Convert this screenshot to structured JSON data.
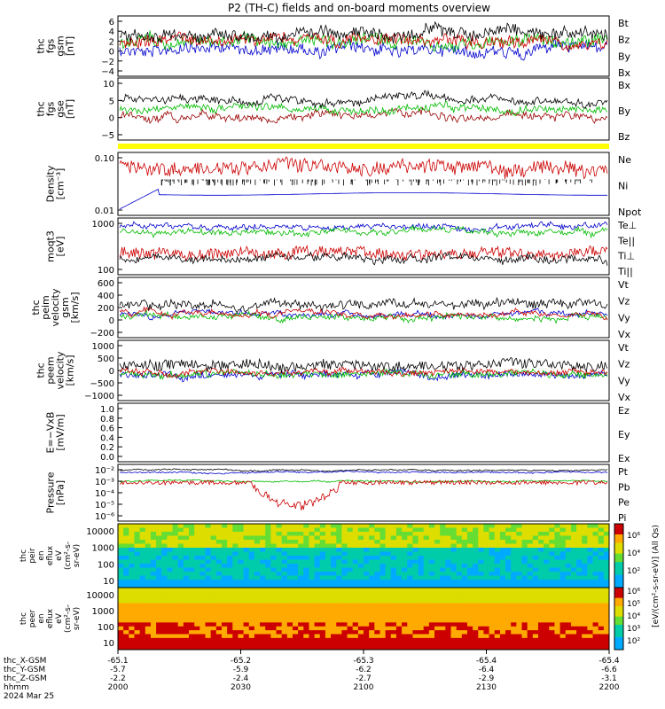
{
  "title": "P2 (TH-C) fields and on-board moments overview",
  "date_label": "2024 Mar 25",
  "ephem": {
    "rows": [
      {
        "name": "thc_X-GSM",
        "values": [
          "-65.1",
          "-65.2",
          "-65.3",
          "-65.4",
          "-65.4"
        ]
      },
      {
        "name": "thc_Y-GSM",
        "values": [
          "-5.7",
          "-5.9",
          "-6.2",
          "-6.4",
          "-6.6"
        ]
      },
      {
        "name": "thc_Z-GSM",
        "values": [
          "-2.2",
          "-2.4",
          "-2.7",
          "-2.9",
          "-3.1"
        ]
      },
      {
        "name": "hhmm",
        "values": [
          "2000",
          "2030",
          "2100",
          "2130",
          "2200"
        ]
      }
    ]
  },
  "colorbar": {
    "ticks": [
      "10⁶",
      "10⁴",
      "10²",
      "10⁶",
      "10⁵",
      "10⁴",
      "10³",
      "10²"
    ],
    "label": "[eV/(cm²-s-sr-eV)] (All Qs)"
  },
  "chart_data": [
    {
      "type": "line",
      "ylabel": [
        "thc",
        "fgs",
        "gsm",
        "[nT]"
      ],
      "yticks": [
        "6",
        "4",
        "2",
        "0",
        "−2",
        "−4"
      ],
      "ylim": [
        -5,
        7.2
      ],
      "series": [
        {
          "name": "Bt",
          "color": "#000000"
        },
        {
          "name": "Bz",
          "color": "#cc0000"
        },
        {
          "name": "By",
          "color": "#00bb00"
        },
        {
          "name": "Bx",
          "color": "#0000cc"
        }
      ]
    },
    {
      "type": "line",
      "ylabel": [
        "thc",
        "fgs",
        "gse",
        "[nT]"
      ],
      "yticks": [
        "10",
        "5",
        "0",
        "−5"
      ],
      "ylim": [
        -8,
        10.5
      ],
      "series": [
        {
          "name": "Bx",
          "color": "#000000"
        },
        {
          "name": "By",
          "color": "#00bb00"
        },
        {
          "name": "Bz",
          "color": "#990000"
        }
      ]
    },
    {
      "type": "line",
      "ylabel": [
        "Density",
        "[cm⁻³]"
      ],
      "yticks": [
        "0.10",
        "0.01"
      ],
      "scale": "log",
      "ylim": [
        0.004,
        0.4
      ],
      "series": [
        {
          "name": "Ne",
          "color": "#cc0000"
        },
        {
          "name": "Ni",
          "color": "#000000"
        },
        {
          "name": "Npot",
          "color": "#0000cc"
        }
      ]
    },
    {
      "type": "line",
      "ylabel": [
        "moqt3",
        "[eV]"
      ],
      "yticks": [
        "1000",
        "100"
      ],
      "scale": "log",
      "ylim": [
        80,
        3500
      ],
      "series": [
        {
          "name": "Te⊥",
          "color": "#cc0000"
        },
        {
          "name": "Te||",
          "color": "#000000"
        },
        {
          "name": "Ti⊥",
          "color": "#00bb00"
        },
        {
          "name": "Ti||",
          "color": "#00bb00"
        }
      ]
    },
    {
      "type": "line",
      "ylabel": [
        "thc",
        "peim",
        "velocity",
        "gsm",
        "[km/s]"
      ],
      "yticks": [
        "600",
        "400",
        "200",
        "0",
        "−200"
      ],
      "ylim": [
        -300,
        650
      ],
      "series": [
        {
          "name": "Vt",
          "color": "#000000"
        },
        {
          "name": "Vz",
          "color": "#cc0000"
        },
        {
          "name": "Vy",
          "color": "#00bb00"
        },
        {
          "name": "Vx",
          "color": "#0000cc"
        }
      ]
    },
    {
      "type": "line",
      "ylabel": [
        "thc",
        "peem",
        "velocity",
        "[km/s]"
      ],
      "yticks": [
        "1000",
        "500",
        "0",
        "−500",
        "−1000"
      ],
      "ylim": [
        -1100,
        1250
      ],
      "series": [
        {
          "name": "Vt",
          "color": "#000000"
        },
        {
          "name": "Vz",
          "color": "#cc0000"
        },
        {
          "name": "Vy",
          "color": "#00bb00"
        },
        {
          "name": "Vx",
          "color": "#0000cc"
        }
      ]
    },
    {
      "type": "line",
      "ylabel": [
        "E=−VxB",
        "[mV/m]"
      ],
      "yticks": [
        "1.0",
        "0.8",
        "0.6",
        "0.4",
        "0.2",
        "0.0"
      ],
      "ylim": [
        0,
        1.0
      ],
      "series": [
        {
          "name": "Ez",
          "color": "#cc0000"
        },
        {
          "name": "Ey",
          "color": "#00bb00"
        },
        {
          "name": "Ex",
          "color": "#0000cc"
        }
      ]
    },
    {
      "type": "line",
      "ylabel": [
        "Pressure",
        "[nPa]"
      ],
      "yticks": [
        "10⁻²",
        "10⁻³",
        "10⁻⁴",
        "10⁻⁵",
        "10⁻⁶"
      ],
      "scale": "log",
      "ylim": [
        7e-07,
        0.05
      ],
      "series": [
        {
          "name": "Pt",
          "color": "#000000"
        },
        {
          "name": "Pb",
          "color": "#cc0000"
        },
        {
          "name": "Pe",
          "color": "#00bb00"
        },
        {
          "name": "Pi",
          "color": "#0000cc"
        }
      ]
    },
    {
      "type": "heatmap",
      "ylabel": [
        "thc",
        "peir",
        "en",
        "eflux",
        "eV",
        "(cm²-s-",
        "sr-eV)"
      ],
      "yticks": [
        "10000",
        "1000",
        "100",
        "10"
      ],
      "scale": "log"
    },
    {
      "type": "heatmap",
      "ylabel": [
        "thc",
        "peer",
        "en",
        "eflux",
        "eV",
        "(cm²-s-",
        "sr-eV)"
      ],
      "yticks": [
        "10000",
        "1000",
        "100",
        "10"
      ],
      "scale": "log"
    }
  ]
}
